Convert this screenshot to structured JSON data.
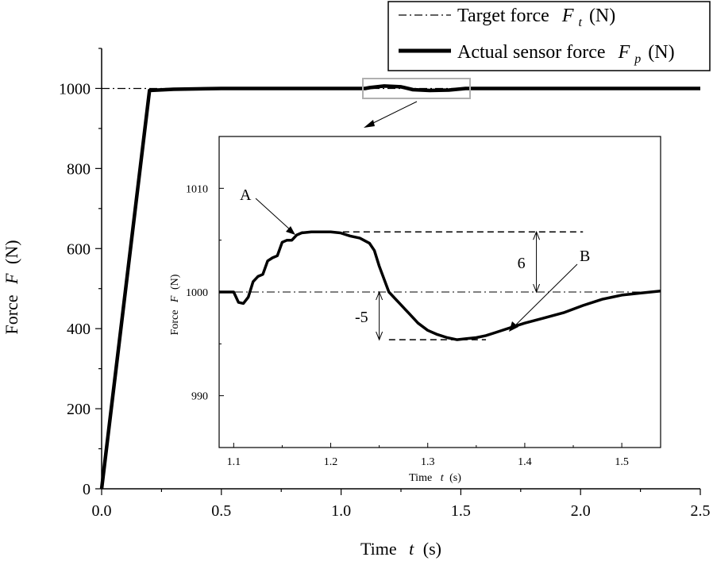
{
  "legend": {
    "target_prefix": "Target force",
    "target_symbol": "F",
    "target_sub": "t",
    "target_unit": "(N)",
    "actual_prefix": "Actual sensor force",
    "actual_symbol": "F",
    "actual_sub": "p",
    "actual_unit": "(N)"
  },
  "chart_data": [
    {
      "type": "line",
      "xlabel_prefix": "Time",
      "xlabel_symbol": "t",
      "xlabel_unit": "(s)",
      "ylabel_prefix": "Force",
      "ylabel_symbol": "F",
      "ylabel_unit": "(N)",
      "xlim": [
        0,
        2.5
      ],
      "ylim": [
        0,
        1100
      ],
      "xticks": [
        0,
        0.5,
        1,
        1.5,
        2,
        2.5
      ],
      "xtick_labels": [
        "0.0",
        "0.5",
        "1.0",
        "1.5",
        "2.0",
        "2.5"
      ],
      "yticks": [
        0,
        200,
        400,
        600,
        800,
        1000
      ],
      "ytick_labels": [
        "0",
        "200",
        "400",
        "600",
        "800",
        "1000"
      ],
      "series": [
        {
          "name": "Target force",
          "style": "dash-dot",
          "x": [
            0,
            2.5
          ],
          "y": [
            1000,
            1000
          ]
        },
        {
          "name": "Actual sensor force",
          "style": "thick",
          "x": [
            0,
            0.2,
            0.3,
            0.5,
            1.0,
            1.1,
            1.12,
            1.18,
            1.25,
            1.3,
            1.37,
            1.45,
            1.52,
            1.6,
            2.0,
            2.5
          ],
          "y": [
            0,
            995,
            998,
            1000,
            1000,
            1000,
            1002,
            1006,
            1004,
            997,
            995,
            996,
            1000,
            1000,
            1000,
            1000
          ]
        }
      ]
    },
    {
      "type": "line",
      "xlabel_prefix": "Time",
      "xlabel_symbol": "t",
      "xlabel_unit": "(s)",
      "ylabel_prefix": "Force",
      "ylabel_symbol": "F",
      "ylabel_unit": "(N)",
      "xlim": [
        1.085,
        1.54
      ],
      "ylim": [
        985,
        1015
      ],
      "xticks": [
        1.1,
        1.2,
        1.3,
        1.4,
        1.5
      ],
      "xtick_labels": [
        "1.1",
        "1.2",
        "1.3",
        "1.4",
        "1.5"
      ],
      "yticks": [
        990,
        1000,
        1010
      ],
      "ytick_labels": [
        "990",
        "1000",
        "1010"
      ],
      "series": [
        {
          "name": "Target force",
          "style": "dash-dot",
          "x": [
            1.085,
            1.54
          ],
          "y": [
            1000,
            1000
          ]
        },
        {
          "name": "Actual sensor force",
          "style": "thick",
          "x": [
            1.085,
            1.1,
            1.105,
            1.11,
            1.115,
            1.12,
            1.125,
            1.13,
            1.135,
            1.14,
            1.145,
            1.15,
            1.155,
            1.16,
            1.165,
            1.17,
            1.18,
            1.19,
            1.2,
            1.21,
            1.22,
            1.23,
            1.24,
            1.245,
            1.25,
            1.26,
            1.27,
            1.28,
            1.29,
            1.3,
            1.31,
            1.32,
            1.33,
            1.34,
            1.35,
            1.36,
            1.37,
            1.38,
            1.39,
            1.4,
            1.42,
            1.44,
            1.46,
            1.48,
            1.49,
            1.5,
            1.52,
            1.54
          ],
          "y": [
            1000,
            1000,
            999.0,
            998.9,
            999.5,
            1001.0,
            1001.5,
            1001.7,
            1003.0,
            1003.3,
            1003.5,
            1004.8,
            1005.0,
            1005.0,
            1005.5,
            1005.7,
            1005.8,
            1005.8,
            1005.8,
            1005.7,
            1005.4,
            1005.2,
            1004.7,
            1004.0,
            1002.5,
            1000.0,
            999.0,
            998.0,
            997.0,
            996.3,
            995.9,
            995.6,
            995.4,
            995.5,
            995.6,
            995.8,
            996.1,
            996.4,
            996.7,
            997.0,
            997.5,
            998.0,
            998.7,
            999.3,
            999.5,
            999.7,
            999.9,
            1000.1
          ]
        }
      ],
      "annotations": {
        "label_A": "A",
        "label_B": "B",
        "diff_up": "6",
        "diff_down": "-5"
      }
    }
  ]
}
